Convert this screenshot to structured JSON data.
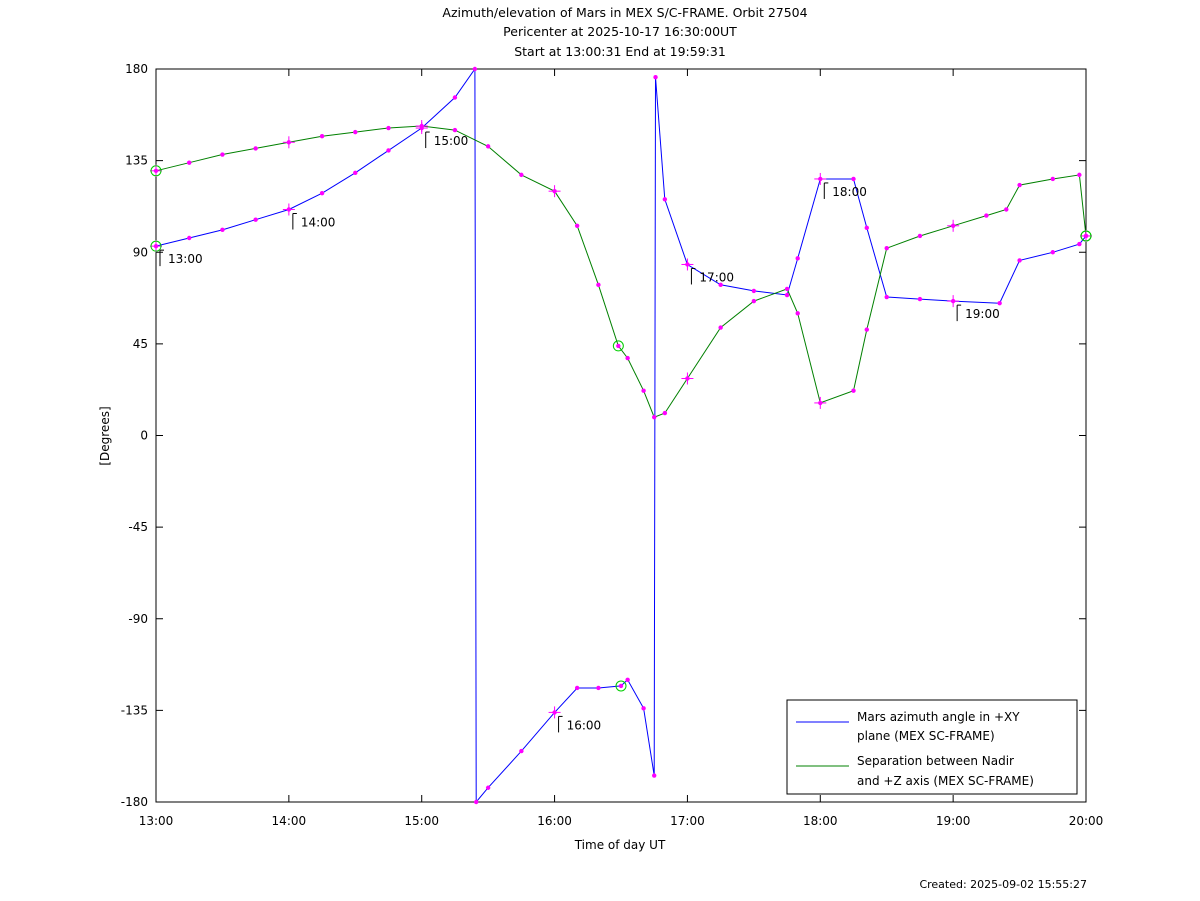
{
  "chart_data": {
    "type": "line",
    "title": "Azimuth/elevation of Mars in MEX S/C-FRAME.  Orbit 27504",
    "subtitle_lines": [
      "Pericenter at 2025-10-17 16:30:00UT",
      "Start at 13:00:31 End at 19:59:31"
    ],
    "xlabel": "Time of day UT",
    "ylabel": "[Degrees]",
    "x_unit": "hours",
    "xlim": [
      13,
      20
    ],
    "ylim": [
      -180,
      180
    ],
    "x_ticks": [
      13,
      14,
      15,
      16,
      17,
      18,
      19,
      20
    ],
    "x_tick_labels": [
      "13:00",
      "14:00",
      "15:00",
      "16:00",
      "17:00",
      "18:00",
      "19:00",
      "20:00"
    ],
    "y_ticks": [
      180,
      135,
      90,
      45,
      0,
      -45,
      -90,
      -135,
      -180
    ],
    "y_tick_labels": [
      "180",
      "135",
      "90",
      "45",
      "0",
      "-45",
      "-90",
      "-135",
      "-180"
    ],
    "grid": false,
    "legend_position": "bottom-right",
    "series": [
      {
        "name": "Mars azimuth angle in +XY plane (MEX SC-FRAME)",
        "legend_lines": [
          "Mars azimuth angle in +XY",
          "plane (MEX SC-FRAME)"
        ],
        "color": "#0000ff",
        "x": [
          13.0,
          13.25,
          13.5,
          13.75,
          14.0,
          14.25,
          14.5,
          14.75,
          15.0,
          15.25,
          15.4,
          15.41,
          15.5,
          15.75,
          16.0,
          16.17,
          16.33,
          16.5,
          16.55,
          16.67,
          16.75,
          16.76,
          16.83,
          17.0,
          17.25,
          17.5,
          17.75,
          17.83,
          18.0,
          18.25,
          18.35,
          18.5,
          18.75,
          19.0,
          19.35,
          19.5,
          19.75,
          19.95,
          20.0
        ],
        "y": [
          93,
          97,
          101,
          106,
          111,
          119,
          129,
          140,
          151,
          166,
          180,
          -180,
          -173,
          -155,
          -136,
          -124,
          -124,
          -123,
          -120,
          -134,
          -167,
          176,
          116,
          84,
          74,
          71,
          69,
          87,
          126,
          126,
          102,
          68,
          67,
          66,
          65,
          86,
          90,
          94,
          98
        ],
        "markers": {
          "circles": [
            [
              13.0,
              93
            ],
            [
              16.5,
              -123
            ],
            [
              20.0,
              98
            ]
          ],
          "crosses": [
            [
              13.0,
              93
            ],
            [
              14.0,
              111
            ],
            [
              15.0,
              151
            ],
            [
              16.0,
              -136
            ],
            [
              17.0,
              84
            ],
            [
              18.0,
              126
            ],
            [
              19.0,
              66
            ],
            [
              20.0,
              98
            ]
          ]
        }
      },
      {
        "name": "Separation between Nadir and +Z axis (MEX SC-FRAME)",
        "legend_lines": [
          "Separation between Nadir",
          "and +Z axis (MEX SC-FRAME)"
        ],
        "color": "#008000",
        "x": [
          13.0,
          13.25,
          13.5,
          13.75,
          14.0,
          14.25,
          14.5,
          14.75,
          15.0,
          15.25,
          15.5,
          15.75,
          16.0,
          16.17,
          16.33,
          16.48,
          16.55,
          16.67,
          16.75,
          16.83,
          17.0,
          17.25,
          17.5,
          17.75,
          17.83,
          18.0,
          18.25,
          18.35,
          18.5,
          18.75,
          19.0,
          19.25,
          19.4,
          19.5,
          19.75,
          19.95,
          20.0
        ],
        "y": [
          130,
          134,
          138,
          141,
          144,
          147,
          149,
          151,
          152,
          150,
          142,
          128,
          120,
          103,
          74,
          44,
          38,
          22,
          9,
          11,
          28,
          53,
          66,
          72,
          60,
          16,
          22,
          52,
          92,
          98,
          103,
          108,
          111,
          123,
          126,
          128,
          98
        ],
        "markers": {
          "circles": [
            [
              13.0,
              130
            ],
            [
              16.48,
              44
            ],
            [
              20.0,
              98
            ]
          ],
          "crosses": [
            [
              13.0,
              130
            ],
            [
              14.0,
              144
            ],
            [
              15.0,
              152
            ],
            [
              16.0,
              120
            ],
            [
              17.0,
              28
            ],
            [
              18.0,
              16
            ],
            [
              19.0,
              103
            ],
            [
              20.0,
              98
            ]
          ]
        }
      }
    ],
    "marker_color": "#ff00ff",
    "circle_color": "#00cc00",
    "annotations": [
      {
        "label": "13:00",
        "x": 13.0,
        "y": 93
      },
      {
        "label": "14:00",
        "x": 14.0,
        "y": 111
      },
      {
        "label": "15:00",
        "x": 15.0,
        "y": 151
      },
      {
        "label": "16:00",
        "x": 16.0,
        "y": -136
      },
      {
        "label": "17:00",
        "x": 17.0,
        "y": 84
      },
      {
        "label": "18:00",
        "x": 18.0,
        "y": 126
      },
      {
        "label": "19:00",
        "x": 19.0,
        "y": 66
      }
    ]
  },
  "footer": {
    "created": "Created: 2025-09-02 15:55:27"
  }
}
